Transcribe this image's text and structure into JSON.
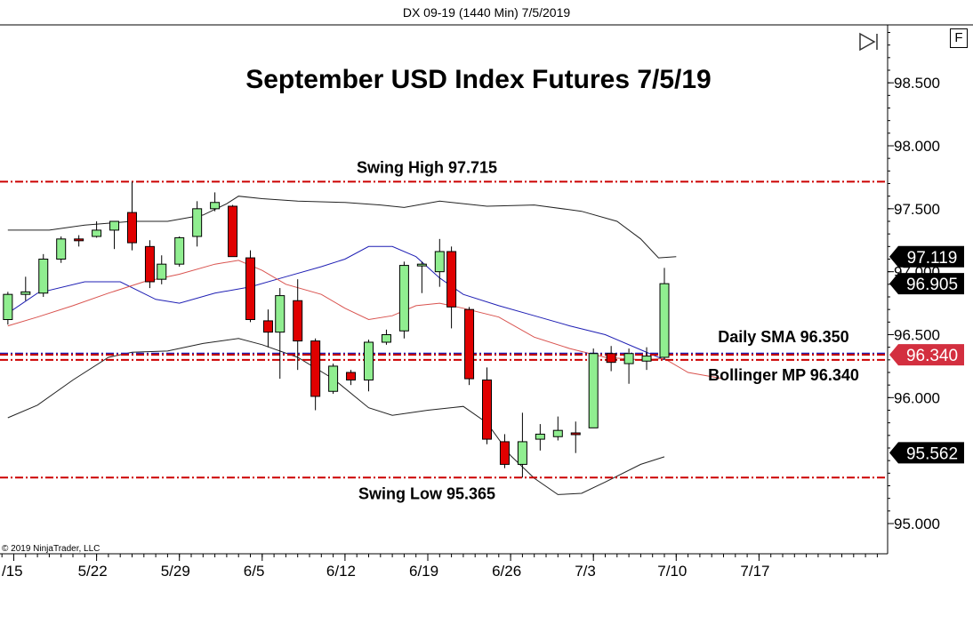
{
  "header": {
    "title": "DX 09-19 (1440 Min)  7/5/2019"
  },
  "toolbar": {
    "format_button": "F"
  },
  "colors": {
    "up": "#90ee90",
    "down": "#e00000",
    "level": "#cc0000",
    "upper_band": "#222222",
    "middle": "#1f1fb4",
    "sma": "#d9534f"
  },
  "chart_data": {
    "type": "candlestick",
    "title": "September USD Index Futures 7/5/19",
    "copyright": "© 2019 NinjaTrader, LLC",
    "ylim": [
      94.76,
      98.96
    ],
    "y_ticks": [
      "98.500",
      "98.000",
      "97.500",
      "97.000",
      "96.500",
      "96.000",
      "95.000"
    ],
    "x_ticks": [
      {
        "label": "/15",
        "day": 0
      },
      {
        "label": "5/22",
        "day": 7
      },
      {
        "label": "5/29",
        "day": 14
      },
      {
        "label": "6/5",
        "day": 21
      },
      {
        "label": "6/12",
        "day": 28
      },
      {
        "label": "6/19",
        "day": 35
      },
      {
        "label": "6/26",
        "day": 42
      },
      {
        "label": "7/3",
        "day": 49
      },
      {
        "label": "7/10",
        "day": 56
      },
      {
        "label": "7/17",
        "day": 63
      }
    ],
    "candles": [
      {
        "day": -0.5,
        "o": 96.62,
        "h": 96.84,
        "l": 96.58,
        "c": 96.82
      },
      {
        "day": 1,
        "o": 96.82,
        "h": 96.96,
        "l": 96.77,
        "c": 96.84
      },
      {
        "day": 2.5,
        "o": 96.83,
        "h": 97.14,
        "l": 96.8,
        "c": 97.1
      },
      {
        "day": 4,
        "o": 97.1,
        "h": 97.28,
        "l": 97.07,
        "c": 97.26
      },
      {
        "day": 5.5,
        "o": 97.26,
        "h": 97.29,
        "l": 97.2,
        "c": 97.25
      },
      {
        "day": 7,
        "o": 97.28,
        "h": 97.4,
        "l": 97.27,
        "c": 97.33
      },
      {
        "day": 8.5,
        "o": 97.33,
        "h": 97.4,
        "l": 97.18,
        "c": 97.4
      },
      {
        "day": 10,
        "o": 97.47,
        "h": 97.715,
        "l": 97.17,
        "c": 97.23
      },
      {
        "day": 11.5,
        "o": 97.2,
        "h": 97.25,
        "l": 96.87,
        "c": 96.92
      },
      {
        "day": 12.5,
        "o": 96.94,
        "h": 97.13,
        "l": 96.9,
        "c": 97.06
      },
      {
        "day": 14,
        "o": 97.06,
        "h": 97.28,
        "l": 97.04,
        "c": 97.27
      },
      {
        "day": 15.5,
        "o": 97.28,
        "h": 97.56,
        "l": 97.2,
        "c": 97.5
      },
      {
        "day": 17,
        "o": 97.5,
        "h": 97.63,
        "l": 97.48,
        "c": 97.55
      },
      {
        "day": 18.5,
        "o": 97.52,
        "h": 97.53,
        "l": 97.12,
        "c": 97.12
      },
      {
        "day": 20,
        "o": 97.11,
        "h": 97.17,
        "l": 96.6,
        "c": 96.62
      },
      {
        "day": 21.5,
        "o": 96.61,
        "h": 96.7,
        "l": 96.4,
        "c": 96.52
      },
      {
        "day": 22.5,
        "o": 96.52,
        "h": 96.87,
        "l": 96.15,
        "c": 96.81
      },
      {
        "day": 24,
        "o": 96.77,
        "h": 96.94,
        "l": 96.22,
        "c": 96.45
      },
      {
        "day": 25.5,
        "o": 96.45,
        "h": 96.47,
        "l": 95.9,
        "c": 96.01
      },
      {
        "day": 27,
        "o": 96.05,
        "h": 96.27,
        "l": 96.03,
        "c": 96.25
      },
      {
        "day": 28.5,
        "o": 96.2,
        "h": 96.22,
        "l": 96.1,
        "c": 96.14
      },
      {
        "day": 30,
        "o": 96.14,
        "h": 96.46,
        "l": 96.05,
        "c": 96.44
      },
      {
        "day": 31.5,
        "o": 96.44,
        "h": 96.54,
        "l": 96.42,
        "c": 96.5
      },
      {
        "day": 33,
        "o": 96.53,
        "h": 97.08,
        "l": 96.47,
        "c": 97.05
      },
      {
        "day": 34.5,
        "o": 97.05,
        "h": 97.08,
        "l": 96.83,
        "c": 97.06
      },
      {
        "day": 36,
        "o": 97.0,
        "h": 97.26,
        "l": 96.88,
        "c": 97.16
      },
      {
        "day": 37,
        "o": 97.16,
        "h": 97.2,
        "l": 96.55,
        "c": 96.72
      },
      {
        "day": 38.5,
        "o": 96.7,
        "h": 96.72,
        "l": 96.1,
        "c": 96.15
      },
      {
        "day": 40,
        "o": 96.14,
        "h": 96.24,
        "l": 95.63,
        "c": 95.67
      },
      {
        "day": 41.5,
        "o": 95.65,
        "h": 95.71,
        "l": 95.44,
        "c": 95.47
      },
      {
        "day": 43,
        "o": 95.47,
        "h": 95.88,
        "l": 95.365,
        "c": 95.65
      },
      {
        "day": 44.5,
        "o": 95.67,
        "h": 95.79,
        "l": 95.58,
        "c": 95.71
      },
      {
        "day": 46,
        "o": 95.69,
        "h": 95.85,
        "l": 95.66,
        "c": 95.74
      },
      {
        "day": 47.5,
        "o": 95.72,
        "h": 95.81,
        "l": 95.56,
        "c": 95.71
      },
      {
        "day": 49,
        "o": 95.76,
        "h": 96.39,
        "l": 95.76,
        "c": 96.35
      },
      {
        "day": 50.5,
        "o": 96.35,
        "h": 96.41,
        "l": 96.21,
        "c": 96.28
      },
      {
        "day": 52,
        "o": 96.27,
        "h": 96.39,
        "l": 96.11,
        "c": 96.35
      },
      {
        "day": 53.5,
        "o": 96.29,
        "h": 96.4,
        "l": 96.22,
        "c": 96.33
      },
      {
        "day": 55,
        "o": 96.32,
        "h": 97.03,
        "l": 96.3,
        "c": 96.905
      }
    ],
    "upper_band": [
      [
        -0.5,
        97.33
      ],
      [
        3,
        97.33
      ],
      [
        6,
        97.37
      ],
      [
        10,
        97.4
      ],
      [
        13,
        97.4
      ],
      [
        16,
        97.45
      ],
      [
        18,
        97.54
      ],
      [
        19,
        97.6
      ],
      [
        21,
        97.58
      ],
      [
        24,
        97.56
      ],
      [
        28,
        97.55
      ],
      [
        31,
        97.53
      ],
      [
        33,
        97.51
      ],
      [
        36,
        97.56
      ],
      [
        40,
        97.52
      ],
      [
        44,
        97.53
      ],
      [
        48,
        97.48
      ],
      [
        51,
        97.4
      ],
      [
        53,
        97.26
      ],
      [
        54.5,
        97.11
      ],
      [
        56,
        97.12
      ]
    ],
    "middle_band": [
      [
        -0.5,
        96.67
      ],
      [
        2,
        96.83
      ],
      [
        6,
        96.92
      ],
      [
        9,
        96.92
      ],
      [
        12,
        96.78
      ],
      [
        14,
        96.75
      ],
      [
        17,
        96.83
      ],
      [
        20,
        96.88
      ],
      [
        23,
        96.96
      ],
      [
        26,
        97.04
      ],
      [
        28,
        97.1
      ],
      [
        30,
        97.2
      ],
      [
        32,
        97.2
      ],
      [
        34,
        97.12
      ],
      [
        36,
        96.95
      ],
      [
        38,
        96.82
      ],
      [
        41,
        96.73
      ],
      [
        44,
        96.65
      ],
      [
        47,
        96.57
      ],
      [
        50,
        96.5
      ],
      [
        53,
        96.38
      ],
      [
        55,
        96.3
      ]
    ],
    "lower_band": [
      [
        -0.5,
        95.84
      ],
      [
        2,
        95.94
      ],
      [
        5,
        96.14
      ],
      [
        8,
        96.32
      ],
      [
        10,
        96.36
      ],
      [
        13,
        96.37
      ],
      [
        16,
        96.43
      ],
      [
        19,
        96.47
      ],
      [
        21,
        96.42
      ],
      [
        24,
        96.32
      ],
      [
        27,
        96.15
      ],
      [
        30,
        95.92
      ],
      [
        32,
        95.86
      ],
      [
        35,
        95.9
      ],
      [
        38,
        95.93
      ],
      [
        40,
        95.8
      ],
      [
        42,
        95.54
      ],
      [
        44,
        95.36
      ],
      [
        46,
        95.23
      ],
      [
        48,
        95.24
      ],
      [
        50,
        95.33
      ],
      [
        53,
        95.47
      ],
      [
        55,
        95.53
      ]
    ],
    "sma": [
      [
        -0.5,
        96.57
      ],
      [
        2,
        96.64
      ],
      [
        5,
        96.73
      ],
      [
        8,
        96.83
      ],
      [
        11,
        96.92
      ],
      [
        14,
        96.98
      ],
      [
        17,
        97.06
      ],
      [
        19,
        97.09
      ],
      [
        21,
        97.01
      ],
      [
        23,
        96.9
      ],
      [
        26,
        96.82
      ],
      [
        28,
        96.71
      ],
      [
        30,
        96.62
      ],
      [
        32,
        96.65
      ],
      [
        34,
        96.73
      ],
      [
        36,
        96.75
      ],
      [
        38,
        96.71
      ],
      [
        41,
        96.64
      ],
      [
        44,
        96.48
      ],
      [
        47,
        96.39
      ],
      [
        50,
        96.32
      ],
      [
        53,
        96.3
      ],
      [
        55,
        96.31
      ],
      [
        57,
        96.2
      ],
      [
        60,
        96.15
      ]
    ],
    "levels": [
      {
        "value": 97.715,
        "label": "Swing High 97.715",
        "style": "dashdot"
      },
      {
        "value": 96.35,
        "label": "Daily SMA 96.350",
        "style": "dashdot-blue"
      },
      {
        "value": 96.34,
        "label": "Bollinger MP 96.340",
        "style": "dashdot"
      },
      {
        "value": 96.3,
        "label": "",
        "style": "dashdot"
      },
      {
        "value": 95.365,
        "label": "Swing Low 95.365",
        "style": "dashdot"
      }
    ],
    "price_markers": [
      {
        "value": 97.119,
        "label": "97.119",
        "bg": "#000000",
        "fg": "#ffffff"
      },
      {
        "value": 96.905,
        "label": "96.905",
        "bg": "#000000",
        "fg": "#ffffff"
      },
      {
        "value": 96.34,
        "label": "96.340",
        "bg": "#d32f3f",
        "fg": "#ffffff"
      },
      {
        "value": 95.562,
        "label": "95.562",
        "bg": "#000000",
        "fg": "#ffffff"
      }
    ]
  }
}
